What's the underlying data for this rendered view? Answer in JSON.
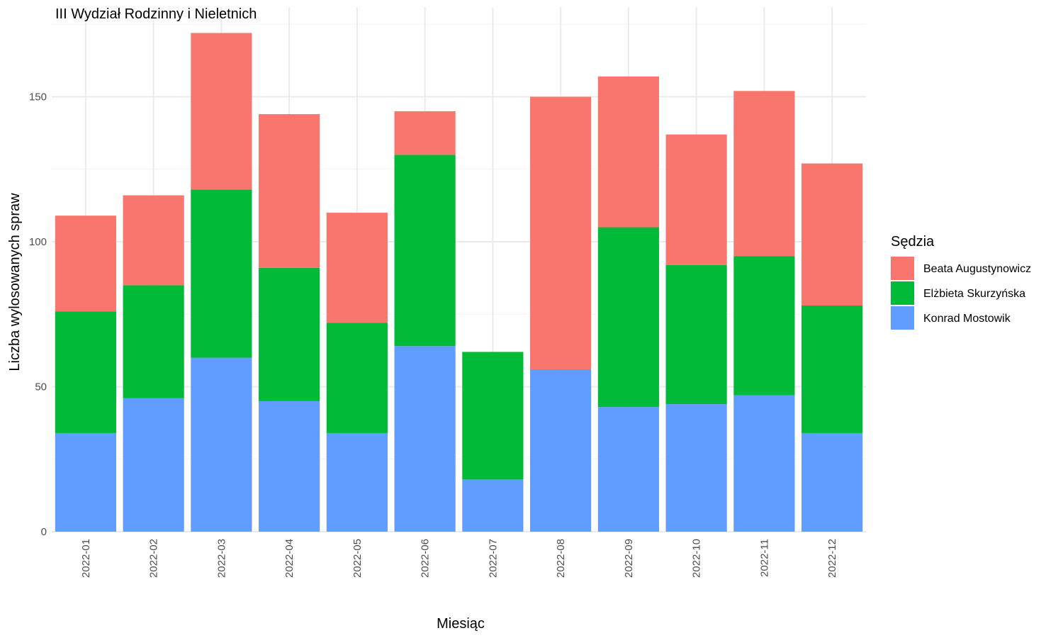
{
  "chart_data": {
    "type": "bar",
    "stacked": true,
    "title": "III Wydział Rodzinny i Nieletnich",
    "xlabel": "Miesiąc",
    "ylabel": "Liczba wylosowanych spraw",
    "ylim": [
      0,
      180
    ],
    "yticks": [
      0,
      50,
      100,
      150
    ],
    "grid": true,
    "legend": {
      "title": "Sędzia",
      "position": "right"
    },
    "categories": [
      "2022-01",
      "2022-02",
      "2022-03",
      "2022-04",
      "2022-05",
      "2022-06",
      "2022-07",
      "2022-08",
      "2022-09",
      "2022-10",
      "2022-11",
      "2022-12"
    ],
    "series": [
      {
        "name": "Konrad Mostowik",
        "color": "#619CFF",
        "values": [
          34,
          46,
          60,
          45,
          34,
          64,
          18,
          56,
          43,
          44,
          47,
          34
        ]
      },
      {
        "name": "Elżbieta Skurzyńska",
        "color": "#00BA38",
        "values": [
          42,
          39,
          58,
          46,
          38,
          66,
          44,
          0,
          62,
          48,
          48,
          44
        ]
      },
      {
        "name": "Beata Augustynowicz",
        "color": "#F8766D",
        "values": [
          33,
          31,
          54,
          53,
          38,
          15,
          0,
          94,
          52,
          45,
          57,
          49
        ]
      }
    ],
    "legend_order": [
      "Beata Augustynowicz",
      "Elżbieta Skurzyńska",
      "Konrad Mostowik"
    ]
  }
}
